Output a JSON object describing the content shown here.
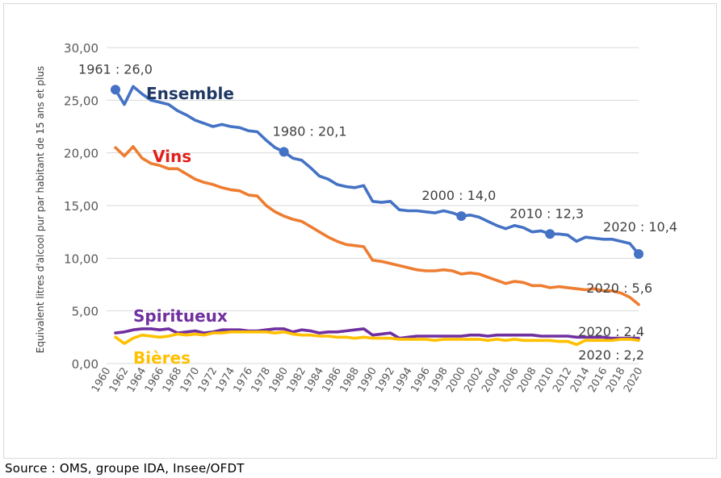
{
  "source": "Source : OMS, groupe IDA, Insee/OFDT",
  "chart_data": {
    "type": "line",
    "ylabel": "Equivalent litres d'alcool pur par habitant de 15 ans et plus",
    "ylim": [
      0,
      30
    ],
    "yticks": [
      "0,00",
      "5,00",
      "10,00",
      "15,00",
      "20,00",
      "25,00",
      "30,00"
    ],
    "xlim": [
      1960,
      2020
    ],
    "xticks": [
      "1960",
      "1962",
      "1964",
      "1966",
      "1968",
      "1970",
      "1972",
      "1974",
      "1976",
      "1978",
      "1980",
      "1982",
      "1984",
      "1986",
      "1988",
      "1990",
      "1992",
      "1994",
      "1996",
      "1998",
      "2000",
      "2002",
      "2004",
      "2006",
      "2008",
      "2010",
      "2012",
      "2014",
      "2016",
      "2018",
      "2020"
    ],
    "grid": "horizontal",
    "x": [
      1961,
      1962,
      1963,
      1964,
      1965,
      1966,
      1967,
      1968,
      1969,
      1970,
      1971,
      1972,
      1973,
      1974,
      1975,
      1976,
      1977,
      1978,
      1979,
      1980,
      1981,
      1982,
      1983,
      1984,
      1985,
      1986,
      1987,
      1988,
      1989,
      1990,
      1991,
      1992,
      1993,
      1994,
      1995,
      1996,
      1997,
      1998,
      1999,
      2000,
      2001,
      2002,
      2003,
      2004,
      2005,
      2006,
      2007,
      2008,
      2009,
      2010,
      2011,
      2012,
      2013,
      2014,
      2015,
      2016,
      2017,
      2018,
      2019,
      2020
    ],
    "series": [
      {
        "name": "Ensemble",
        "color": "#4472c4",
        "label_color": "#1f3864",
        "values": [
          26.0,
          24.6,
          26.3,
          25.6,
          25.0,
          24.8,
          24.6,
          24.0,
          23.6,
          23.1,
          22.8,
          22.5,
          22.7,
          22.5,
          22.4,
          22.1,
          22.0,
          21.2,
          20.5,
          20.1,
          19.5,
          19.3,
          18.6,
          17.8,
          17.5,
          17.0,
          16.8,
          16.7,
          16.9,
          15.4,
          15.3,
          15.4,
          14.6,
          14.5,
          14.5,
          14.4,
          14.3,
          14.5,
          14.3,
          14.0,
          14.1,
          13.9,
          13.5,
          13.1,
          12.8,
          13.1,
          12.9,
          12.5,
          12.6,
          12.3,
          12.3,
          12.2,
          11.6,
          12.0,
          11.9,
          11.8,
          11.8,
          11.6,
          11.4,
          10.4
        ]
      },
      {
        "name": "Vins",
        "color": "#ed7d31",
        "label_color": "#e0201c",
        "values": [
          20.5,
          19.7,
          20.6,
          19.5,
          19.0,
          18.8,
          18.5,
          18.5,
          18.0,
          17.5,
          17.2,
          17.0,
          16.7,
          16.5,
          16.4,
          16.0,
          15.9,
          15.0,
          14.4,
          14.0,
          13.7,
          13.5,
          13.0,
          12.5,
          12.0,
          11.6,
          11.3,
          11.2,
          11.1,
          9.8,
          9.7,
          9.5,
          9.3,
          9.1,
          8.9,
          8.8,
          8.8,
          8.9,
          8.8,
          8.5,
          8.6,
          8.5,
          8.2,
          7.9,
          7.6,
          7.8,
          7.7,
          7.4,
          7.4,
          7.2,
          7.3,
          7.2,
          7.1,
          7.0,
          7.1,
          6.9,
          6.9,
          6.7,
          6.3,
          5.6
        ]
      },
      {
        "name": "Spiritueux",
        "color": "#7030a0",
        "label_color": "#7030a0",
        "values": [
          2.9,
          3.0,
          3.2,
          3.3,
          3.3,
          3.2,
          3.3,
          2.9,
          3.0,
          3.1,
          2.9,
          3.0,
          3.2,
          3.2,
          3.2,
          3.1,
          3.1,
          3.2,
          3.3,
          3.3,
          3.0,
          3.2,
          3.1,
          2.9,
          3.0,
          3.0,
          3.1,
          3.2,
          3.3,
          2.7,
          2.8,
          2.9,
          2.4,
          2.5,
          2.6,
          2.6,
          2.6,
          2.6,
          2.6,
          2.6,
          2.7,
          2.7,
          2.6,
          2.7,
          2.7,
          2.7,
          2.7,
          2.7,
          2.6,
          2.6,
          2.6,
          2.6,
          2.5,
          2.5,
          2.5,
          2.5,
          2.4,
          2.4,
          2.4,
          2.4
        ]
      },
      {
        "name": "Bières",
        "color": "#ffc000",
        "label_color": "#ffc000",
        "values": [
          2.5,
          1.9,
          2.4,
          2.7,
          2.6,
          2.5,
          2.6,
          2.8,
          2.7,
          2.8,
          2.7,
          2.9,
          2.9,
          3.0,
          3.0,
          3.0,
          3.0,
          3.0,
          2.9,
          3.0,
          2.8,
          2.7,
          2.7,
          2.6,
          2.6,
          2.5,
          2.5,
          2.4,
          2.5,
          2.4,
          2.4,
          2.4,
          2.3,
          2.3,
          2.3,
          2.3,
          2.2,
          2.3,
          2.3,
          2.3,
          2.3,
          2.3,
          2.2,
          2.3,
          2.2,
          2.3,
          2.2,
          2.2,
          2.2,
          2.2,
          2.1,
          2.1,
          1.8,
          2.2,
          2.2,
          2.2,
          2.2,
          2.3,
          2.3,
          2.2
        ]
      }
    ],
    "markers": [
      {
        "x": 1961,
        "y": 26.0,
        "label": "1961 : 26,0"
      },
      {
        "x": 1980,
        "y": 20.1,
        "label": "1980 : 20,1"
      },
      {
        "x": 2000,
        "y": 14.0,
        "label": "2000 : 14,0"
      },
      {
        "x": 2010,
        "y": 12.3,
        "label": "2010 : 12,3"
      },
      {
        "x": 2020,
        "y": 10.4,
        "label": "2020 : 10,4"
      }
    ],
    "end_labels": [
      {
        "series": "Vins",
        "label": "2020 : 5,6"
      },
      {
        "series": "Spiritueux",
        "label": "2020 : 2,4"
      },
      {
        "series": "Bières",
        "label": "2020 : 2,2"
      }
    ]
  }
}
